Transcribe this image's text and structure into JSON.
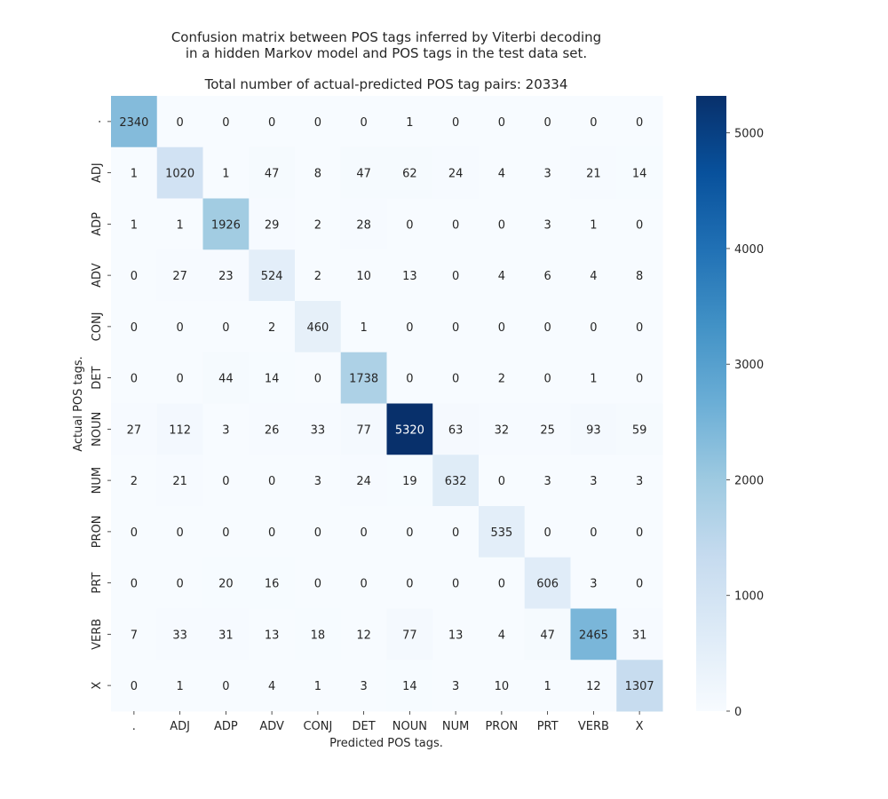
{
  "chart_data": {
    "type": "heatmap",
    "title_lines": [
      "Confusion matrix between POS tags inferred by Viterbi decoding",
      "in a hidden Markov model and POS tags in the test data set."
    ],
    "subtitle": "Total number of actual-predicted POS tag pairs: 20334",
    "xlabel": "Predicted POS tags.",
    "ylabel": "Actual POS tags.",
    "x_categories": [
      ".",
      "ADJ",
      "ADP",
      "ADV",
      "CONJ",
      "DET",
      "NOUN",
      "NUM",
      "PRON",
      "PRT",
      "VERB",
      "X"
    ],
    "y_categories": [
      ".",
      "ADJ",
      "ADP",
      "ADV",
      "CONJ",
      "DET",
      "NOUN",
      "NUM",
      "PRON",
      "PRT",
      "VERB",
      "X"
    ],
    "matrix": [
      [
        2340,
        0,
        0,
        0,
        0,
        0,
        1,
        0,
        0,
        0,
        0,
        0
      ],
      [
        1,
        1020,
        1,
        47,
        8,
        47,
        62,
        24,
        4,
        3,
        21,
        14
      ],
      [
        1,
        1,
        1926,
        29,
        2,
        28,
        0,
        0,
        0,
        3,
        1,
        0
      ],
      [
        0,
        27,
        23,
        524,
        2,
        10,
        13,
        0,
        4,
        6,
        4,
        8
      ],
      [
        0,
        0,
        0,
        2,
        460,
        1,
        0,
        0,
        0,
        0,
        0,
        0
      ],
      [
        0,
        0,
        44,
        14,
        0,
        1738,
        0,
        0,
        2,
        0,
        1,
        0
      ],
      [
        27,
        112,
        3,
        26,
        33,
        77,
        5320,
        63,
        32,
        25,
        93,
        59
      ],
      [
        2,
        21,
        0,
        0,
        3,
        24,
        19,
        632,
        0,
        3,
        3,
        3
      ],
      [
        0,
        0,
        0,
        0,
        0,
        0,
        0,
        0,
        535,
        0,
        0,
        0
      ],
      [
        0,
        0,
        20,
        16,
        0,
        0,
        0,
        0,
        0,
        606,
        3,
        0
      ],
      [
        7,
        33,
        31,
        13,
        18,
        12,
        77,
        13,
        4,
        47,
        2465,
        31
      ],
      [
        0,
        1,
        0,
        4,
        1,
        3,
        14,
        3,
        10,
        1,
        12,
        1307
      ]
    ],
    "colormap": "Blues",
    "color_range": [
      0,
      5320
    ],
    "colorbar_ticks": [
      0,
      1000,
      2000,
      3000,
      4000,
      5000
    ],
    "grid": false,
    "legend": "colorbar-right"
  }
}
